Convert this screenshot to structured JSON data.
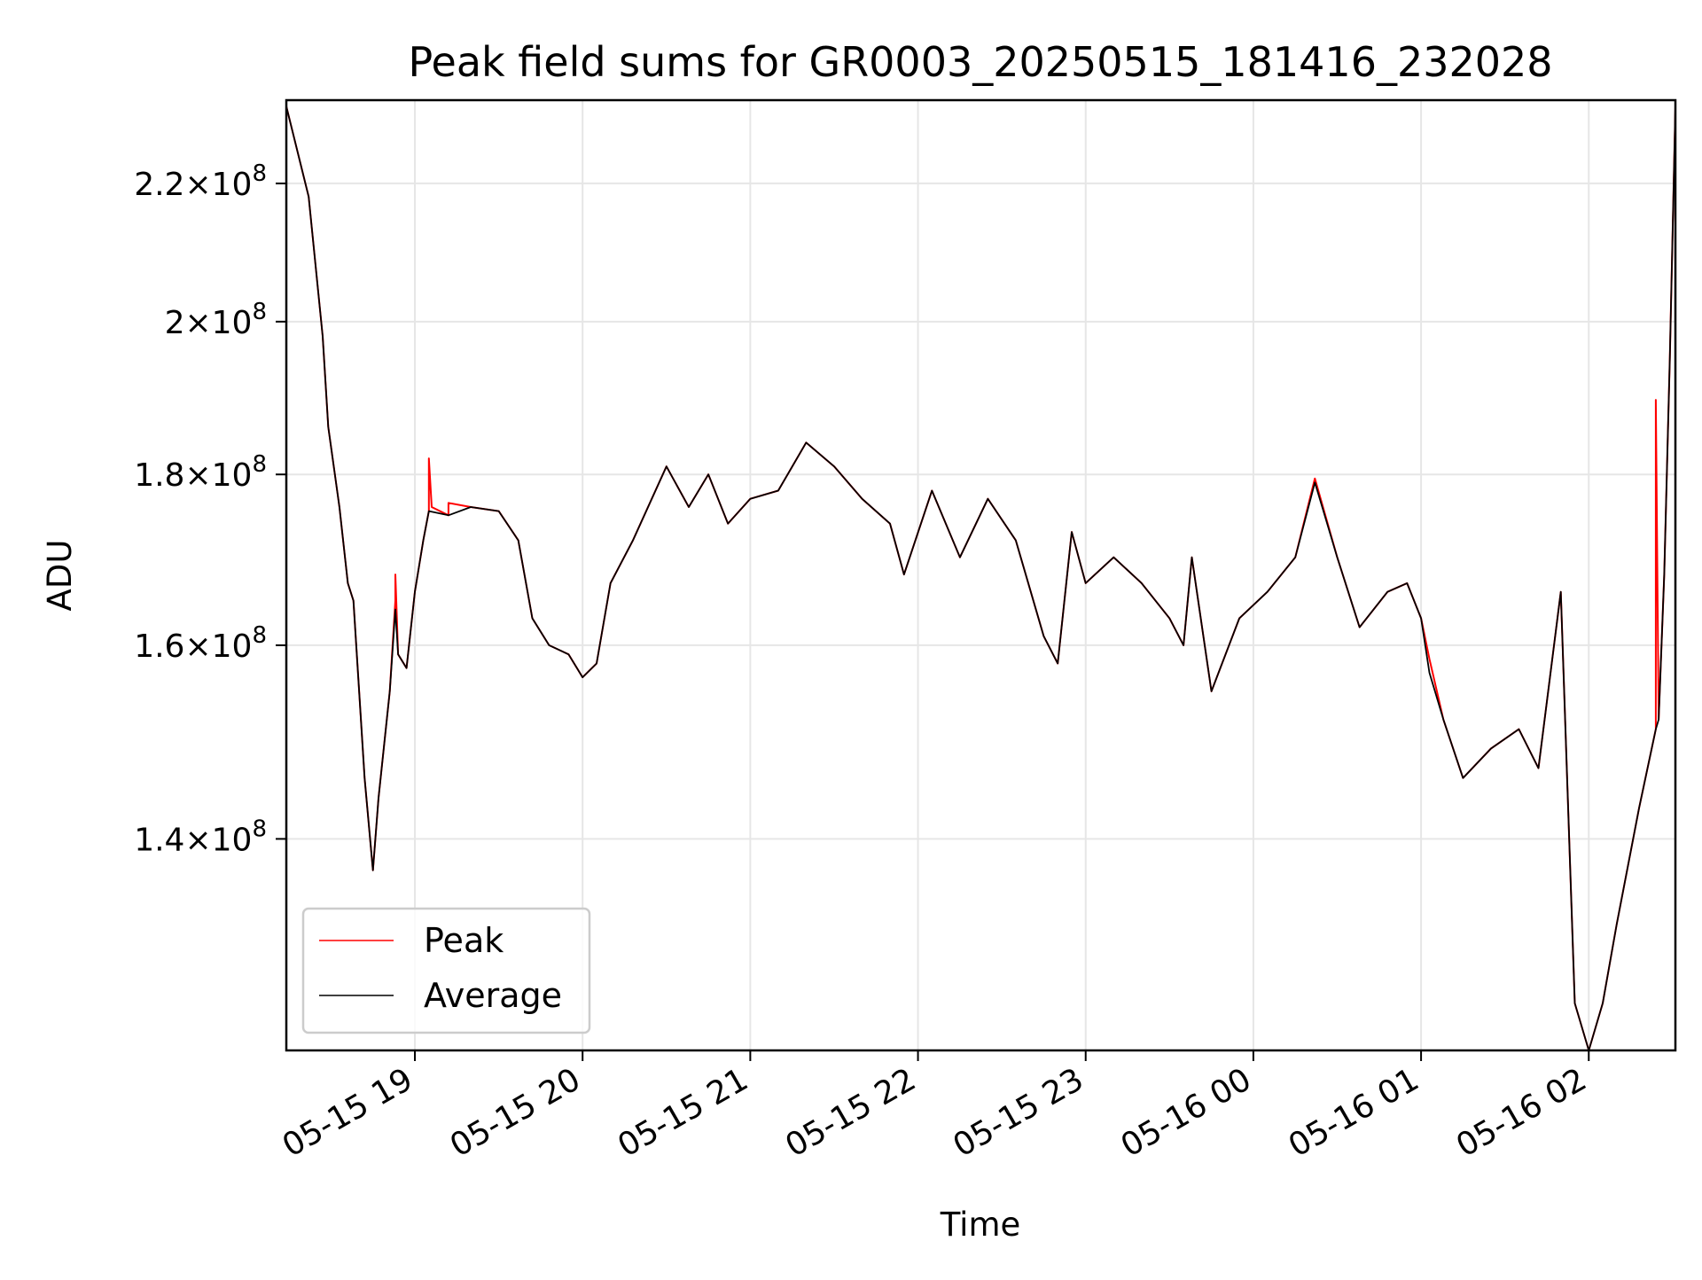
{
  "chart_data": {
    "type": "line",
    "title": "Peak field sums for GR0003_20250515_181416_232028",
    "xlabel": "Time",
    "ylabel": "ADU",
    "y_scale": "log",
    "xlim": [
      "2025-05-15 18:14",
      "2025-05-16 02:31"
    ],
    "ylim": [
      121000000,
      233000000
    ],
    "x_ticks": [
      {
        "value": "2025-05-15 19:00",
        "label": "05-15 19"
      },
      {
        "value": "2025-05-15 20:00",
        "label": "05-15 20"
      },
      {
        "value": "2025-05-15 21:00",
        "label": "05-15 21"
      },
      {
        "value": "2025-05-15 22:00",
        "label": "05-15 22"
      },
      {
        "value": "2025-05-15 23:00",
        "label": "05-15 23"
      },
      {
        "value": "2025-05-16 00:00",
        "label": "05-16 00"
      },
      {
        "value": "2025-05-16 01:00",
        "label": "05-16 01"
      },
      {
        "value": "2025-05-16 02:00",
        "label": "05-16 02"
      }
    ],
    "y_ticks": [
      {
        "value": 140000000,
        "mantissa": "1.4",
        "exponent": "8"
      },
      {
        "value": 160000000,
        "mantissa": "1.6",
        "exponent": "8"
      },
      {
        "value": 180000000,
        "mantissa": "1.8",
        "exponent": "8"
      },
      {
        "value": 200000000,
        "mantissa": "2",
        "exponent": "8"
      },
      {
        "value": 220000000,
        "mantissa": "2.2",
        "exponent": "8"
      }
    ],
    "grid": true,
    "legend_position": "lower-left",
    "series": [
      {
        "name": "Peak",
        "color": "#ff0000",
        "points": [
          [
            "2025-05-15 18:14",
            232000000
          ],
          [
            "2025-05-15 18:22",
            218000000
          ],
          [
            "2025-05-15 18:27",
            198000000
          ],
          [
            "2025-05-15 18:29",
            186000000
          ],
          [
            "2025-05-15 18:33",
            176000000
          ],
          [
            "2025-05-15 18:36",
            167000000
          ],
          [
            "2025-05-15 18:38",
            165000000
          ],
          [
            "2025-05-15 18:42",
            146000000
          ],
          [
            "2025-05-15 18:45",
            137000000
          ],
          [
            "2025-05-15 18:47",
            144000000
          ],
          [
            "2025-05-15 18:51",
            155000000
          ],
          [
            "2025-05-15 18:53",
            165000000
          ],
          [
            "2025-05-15 18:53",
            168000000
          ],
          [
            "2025-05-15 18:54",
            159000000
          ],
          [
            "2025-05-15 18:57",
            157500000
          ],
          [
            "2025-05-15 19:00",
            166000000
          ],
          [
            "2025-05-15 19:03",
            172000000
          ],
          [
            "2025-05-15 19:05",
            175500000
          ],
          [
            "2025-05-15 19:05",
            182000000
          ],
          [
            "2025-05-15 19:06",
            176000000
          ],
          [
            "2025-05-15 19:12",
            175000000
          ],
          [
            "2025-05-15 19:12",
            176500000
          ],
          [
            "2025-05-15 19:20",
            176000000
          ],
          [
            "2025-05-15 19:30",
            175500000
          ],
          [
            "2025-05-15 19:37",
            172000000
          ],
          [
            "2025-05-15 19:42",
            163000000
          ],
          [
            "2025-05-15 19:48",
            160000000
          ],
          [
            "2025-05-15 19:55",
            159000000
          ],
          [
            "2025-05-15 20:00",
            156500000
          ],
          [
            "2025-05-15 20:05",
            158000000
          ],
          [
            "2025-05-15 20:10",
            167000000
          ],
          [
            "2025-05-15 20:18",
            172000000
          ],
          [
            "2025-05-15 20:30",
            181000000
          ],
          [
            "2025-05-15 20:38",
            176000000
          ],
          [
            "2025-05-15 20:45",
            180000000
          ],
          [
            "2025-05-15 20:52",
            174000000
          ],
          [
            "2025-05-15 21:00",
            177000000
          ],
          [
            "2025-05-15 21:10",
            178000000
          ],
          [
            "2025-05-15 21:20",
            184000000
          ],
          [
            "2025-05-15 21:30",
            181000000
          ],
          [
            "2025-05-15 21:40",
            177000000
          ],
          [
            "2025-05-15 21:50",
            174000000
          ],
          [
            "2025-05-15 21:55",
            168000000
          ],
          [
            "2025-05-15 22:05",
            178000000
          ],
          [
            "2025-05-15 22:15",
            170000000
          ],
          [
            "2025-05-15 22:25",
            177000000
          ],
          [
            "2025-05-15 22:35",
            172000000
          ],
          [
            "2025-05-15 22:45",
            161000000
          ],
          [
            "2025-05-15 22:50",
            158000000
          ],
          [
            "2025-05-15 22:55",
            173000000
          ],
          [
            "2025-05-15 23:00",
            167000000
          ],
          [
            "2025-05-15 23:10",
            170000000
          ],
          [
            "2025-05-15 23:20",
            167000000
          ],
          [
            "2025-05-15 23:30",
            163000000
          ],
          [
            "2025-05-15 23:35",
            160000000
          ],
          [
            "2025-05-15 23:38",
            170000000
          ],
          [
            "2025-05-15 23:45",
            155000000
          ],
          [
            "2025-05-15 23:55",
            163000000
          ],
          [
            "2025-05-16 00:05",
            166000000
          ],
          [
            "2025-05-16 00:15",
            170000000
          ],
          [
            "2025-05-16 00:22",
            179500000
          ],
          [
            "2025-05-16 00:30",
            170000000
          ],
          [
            "2025-05-16 00:38",
            162000000
          ],
          [
            "2025-05-16 00:48",
            166000000
          ],
          [
            "2025-05-16 00:55",
            167000000
          ],
          [
            "2025-05-16 01:00",
            163000000
          ],
          [
            "2025-05-16 01:03",
            158500000
          ],
          [
            "2025-05-16 01:08",
            152000000
          ],
          [
            "2025-05-16 01:15",
            146000000
          ],
          [
            "2025-05-16 01:25",
            149000000
          ],
          [
            "2025-05-16 01:35",
            151000000
          ],
          [
            "2025-05-16 01:42",
            147000000
          ],
          [
            "2025-05-16 01:50",
            166000000
          ],
          [
            "2025-05-16 01:55",
            125000000
          ],
          [
            "2025-05-16 02:00",
            121000000
          ],
          [
            "2025-05-16 02:05",
            125000000
          ],
          [
            "2025-05-16 02:10",
            132000000
          ],
          [
            "2025-05-16 02:18",
            143000000
          ],
          [
            "2025-05-16 02:24",
            151000000
          ],
          [
            "2025-05-16 02:24",
            189500000
          ],
          [
            "2025-05-16 02:25",
            152000000
          ],
          [
            "2025-05-16 02:27",
            168000000
          ],
          [
            "2025-05-16 02:29",
            195000000
          ],
          [
            "2025-05-16 02:31",
            232000000
          ]
        ]
      },
      {
        "name": "Average",
        "color": "#000000",
        "points": [
          [
            "2025-05-15 18:14",
            232000000
          ],
          [
            "2025-05-15 18:22",
            218000000
          ],
          [
            "2025-05-15 18:27",
            198000000
          ],
          [
            "2025-05-15 18:29",
            186000000
          ],
          [
            "2025-05-15 18:33",
            176000000
          ],
          [
            "2025-05-15 18:36",
            167000000
          ],
          [
            "2025-05-15 18:38",
            165000000
          ],
          [
            "2025-05-15 18:42",
            146000000
          ],
          [
            "2025-05-15 18:45",
            137000000
          ],
          [
            "2025-05-15 18:47",
            144000000
          ],
          [
            "2025-05-15 18:51",
            155000000
          ],
          [
            "2025-05-15 18:53",
            164000000
          ],
          [
            "2025-05-15 18:54",
            159000000
          ],
          [
            "2025-05-15 18:57",
            157500000
          ],
          [
            "2025-05-15 19:00",
            166000000
          ],
          [
            "2025-05-15 19:03",
            172000000
          ],
          [
            "2025-05-15 19:05",
            175500000
          ],
          [
            "2025-05-15 19:12",
            175000000
          ],
          [
            "2025-05-15 19:20",
            176000000
          ],
          [
            "2025-05-15 19:30",
            175500000
          ],
          [
            "2025-05-15 19:37",
            172000000
          ],
          [
            "2025-05-15 19:42",
            163000000
          ],
          [
            "2025-05-15 19:48",
            160000000
          ],
          [
            "2025-05-15 19:55",
            159000000
          ],
          [
            "2025-05-15 20:00",
            156500000
          ],
          [
            "2025-05-15 20:05",
            158000000
          ],
          [
            "2025-05-15 20:10",
            167000000
          ],
          [
            "2025-05-15 20:18",
            172000000
          ],
          [
            "2025-05-15 20:30",
            181000000
          ],
          [
            "2025-05-15 20:38",
            176000000
          ],
          [
            "2025-05-15 20:45",
            180000000
          ],
          [
            "2025-05-15 20:52",
            174000000
          ],
          [
            "2025-05-15 21:00",
            177000000
          ],
          [
            "2025-05-15 21:10",
            178000000
          ],
          [
            "2025-05-15 21:20",
            184000000
          ],
          [
            "2025-05-15 21:30",
            181000000
          ],
          [
            "2025-05-15 21:40",
            177000000
          ],
          [
            "2025-05-15 21:50",
            174000000
          ],
          [
            "2025-05-15 21:55",
            168000000
          ],
          [
            "2025-05-15 22:05",
            178000000
          ],
          [
            "2025-05-15 22:15",
            170000000
          ],
          [
            "2025-05-15 22:25",
            177000000
          ],
          [
            "2025-05-15 22:35",
            172000000
          ],
          [
            "2025-05-15 22:45",
            161000000
          ],
          [
            "2025-05-15 22:50",
            158000000
          ],
          [
            "2025-05-15 22:55",
            173000000
          ],
          [
            "2025-05-15 23:00",
            167000000
          ],
          [
            "2025-05-15 23:10",
            170000000
          ],
          [
            "2025-05-15 23:20",
            167000000
          ],
          [
            "2025-05-15 23:30",
            163000000
          ],
          [
            "2025-05-15 23:35",
            160000000
          ],
          [
            "2025-05-15 23:38",
            170000000
          ],
          [
            "2025-05-15 23:45",
            155000000
          ],
          [
            "2025-05-15 23:55",
            163000000
          ],
          [
            "2025-05-16 00:05",
            166000000
          ],
          [
            "2025-05-16 00:15",
            170000000
          ],
          [
            "2025-05-16 00:22",
            179000000
          ],
          [
            "2025-05-16 00:30",
            170000000
          ],
          [
            "2025-05-16 00:38",
            162000000
          ],
          [
            "2025-05-16 00:48",
            166000000
          ],
          [
            "2025-05-16 00:55",
            167000000
          ],
          [
            "2025-05-16 01:00",
            163000000
          ],
          [
            "2025-05-16 01:03",
            157000000
          ],
          [
            "2025-05-16 01:08",
            152000000
          ],
          [
            "2025-05-16 01:15",
            146000000
          ],
          [
            "2025-05-16 01:25",
            149000000
          ],
          [
            "2025-05-16 01:35",
            151000000
          ],
          [
            "2025-05-16 01:42",
            147000000
          ],
          [
            "2025-05-16 01:50",
            166000000
          ],
          [
            "2025-05-16 01:55",
            125000000
          ],
          [
            "2025-05-16 02:00",
            121000000
          ],
          [
            "2025-05-16 02:05",
            125000000
          ],
          [
            "2025-05-16 02:10",
            132000000
          ],
          [
            "2025-05-16 02:18",
            143000000
          ],
          [
            "2025-05-16 02:24",
            151000000
          ],
          [
            "2025-05-16 02:25",
            152000000
          ],
          [
            "2025-05-16 02:27",
            168000000
          ],
          [
            "2025-05-16 02:29",
            195000000
          ],
          [
            "2025-05-16 02:31",
            232000000
          ]
        ]
      }
    ]
  },
  "colors": {
    "grid": "#e6e6e6",
    "axes": "#000000",
    "legend_border": "#cccccc"
  }
}
